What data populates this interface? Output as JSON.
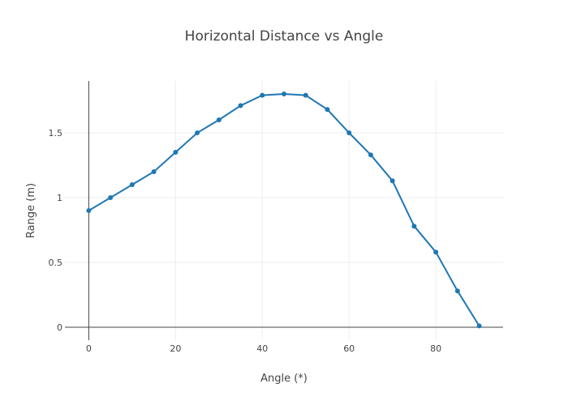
{
  "chart_data": {
    "type": "line",
    "title": "Horizontal Distance vs Angle",
    "xlabel": "Angle (*)",
    "ylabel": "Range (m)",
    "xlim": [
      -5.5,
      95.5
    ],
    "ylim": [
      -0.1,
      1.9
    ],
    "grid": true,
    "x_ticks": [
      0,
      20,
      40,
      60,
      80
    ],
    "y_ticks": [
      0,
      0.5,
      1,
      1.5
    ],
    "x_tick_labels": [
      "0",
      "20",
      "40",
      "60",
      "80"
    ],
    "y_tick_labels": [
      "0",
      "0.5",
      "1",
      "1.5"
    ],
    "series": [
      {
        "color": "#1f77b4",
        "x": [
          0,
          5,
          10,
          15,
          20,
          25,
          30,
          35,
          40,
          45,
          50,
          55,
          60,
          65,
          70,
          75,
          80,
          85,
          90
        ],
        "y": [
          0.9,
          1.0,
          1.1,
          1.2,
          1.35,
          1.5,
          1.6,
          1.71,
          1.79,
          1.8,
          1.79,
          1.68,
          1.5,
          1.33,
          1.13,
          0.78,
          0.58,
          0.28,
          0.01
        ]
      }
    ]
  }
}
